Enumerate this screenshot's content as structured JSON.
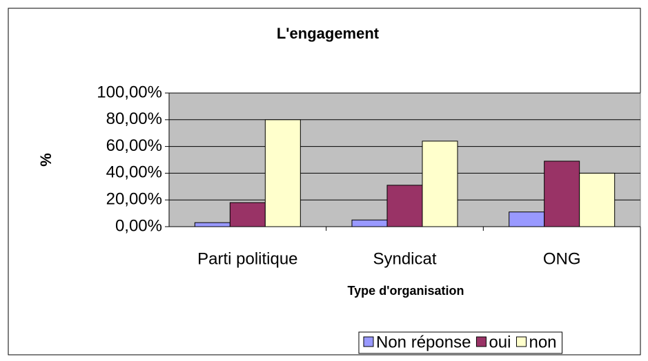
{
  "chart_data": {
    "type": "bar",
    "title": "L'engagement",
    "y_label": "%",
    "x_label": "Type d'organisation",
    "categories": [
      "Parti politique",
      "Syndicat",
      "ONG"
    ],
    "series": [
      {
        "name": "Non réponse",
        "color": "#9999ff",
        "values": [
          3,
          5,
          11
        ]
      },
      {
        "name": "oui",
        "color": "#993366",
        "values": [
          18,
          31,
          49
        ]
      },
      {
        "name": "non",
        "color": "#ffffcc",
        "values": [
          80,
          64,
          40
        ]
      }
    ],
    "ylim": [
      0,
      100
    ],
    "yticks": [
      {
        "value": 0,
        "label": "0,00%"
      },
      {
        "value": 20,
        "label": "20,00%"
      },
      {
        "value": 40,
        "label": "40,00%"
      },
      {
        "value": 60,
        "label": "60,00%"
      },
      {
        "value": 80,
        "label": "80,00%"
      },
      {
        "value": 100,
        "label": "100,00%"
      }
    ],
    "grid": true,
    "legend": "bottom-right"
  }
}
